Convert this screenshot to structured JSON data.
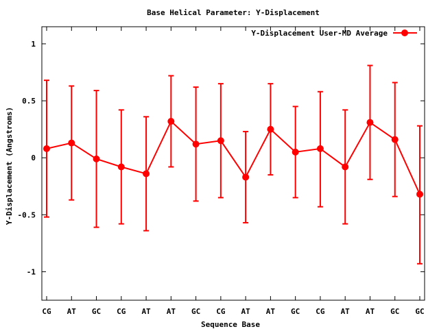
{
  "chart_data": {
    "type": "line",
    "title": "Base  Helical Parameter: Y-Displacement",
    "xlabel": "Sequence Base",
    "ylabel": "Y-Displacement (Angstroms)",
    "ylim": [
      -1.25,
      1.15
    ],
    "yticks": [
      -1,
      -0.5,
      0,
      0.5,
      1
    ],
    "ytick_labels": [
      "-1",
      "-0.5",
      "0",
      "0.5",
      "1"
    ],
    "categories": [
      "CG",
      "AT",
      "GC",
      "CG",
      "AT",
      "AT",
      "GC",
      "CG",
      "AT",
      "AT",
      "GC",
      "CG",
      "AT",
      "AT",
      "GC",
      "GC"
    ],
    "legend_position": "top-right",
    "grid": false,
    "series": [
      {
        "name": "Y-Displacement User-MD Average",
        "color": "#ff0000",
        "values": [
          0.08,
          0.13,
          -0.01,
          -0.08,
          -0.14,
          0.32,
          0.12,
          0.15,
          -0.17,
          0.25,
          0.05,
          0.08,
          -0.08,
          0.31,
          0.16,
          -0.32
        ],
        "error_low": [
          -0.52,
          -0.37,
          -0.61,
          -0.58,
          -0.64,
          -0.08,
          -0.38,
          -0.35,
          -0.57,
          -0.15,
          -0.35,
          -0.43,
          -0.58,
          -0.19,
          -0.34,
          -0.93
        ],
        "error_high": [
          0.68,
          0.63,
          0.59,
          0.42,
          0.36,
          0.72,
          0.62,
          0.65,
          0.23,
          0.65,
          0.45,
          0.58,
          0.42,
          0.81,
          0.66,
          0.28
        ]
      }
    ]
  }
}
